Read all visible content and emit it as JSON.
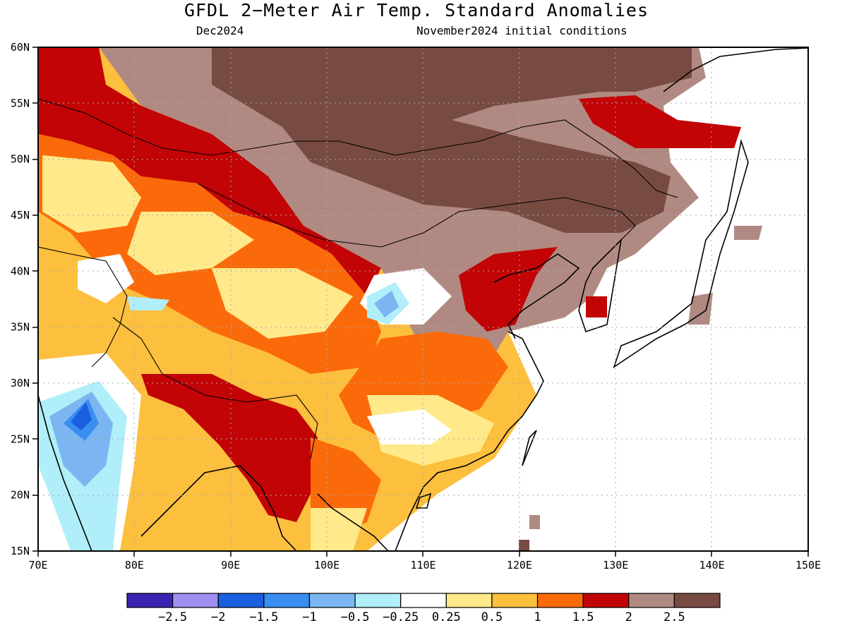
{
  "title": "GFDL 2−Meter Air Temp. Standard Anomalies",
  "subtitle_left": "Dec2024",
  "subtitle_right": "November2024 initial conditions",
  "lon_labels": [
    "70E",
    "80E",
    "90E",
    "100E",
    "110E",
    "120E",
    "130E",
    "140E",
    "150E"
  ],
  "lat_labels": [
    "60N",
    "55N",
    "50N",
    "45N",
    "40N",
    "35N",
    "30N",
    "25N",
    "20N",
    "15N"
  ],
  "colorbar": {
    "colors": [
      "#3b23b2",
      "#9f8ff0",
      "#1a5fe0",
      "#3a8ef0",
      "#7bb6f2",
      "#b0eef9",
      "#ffffff",
      "#ffe98a",
      "#fdbf3e",
      "#fb6a0a",
      "#c20406",
      "#b08a82",
      "#784b42"
    ],
    "labels": [
      "−2.5",
      "−2",
      "−1.5",
      "−1",
      "−0.5",
      "−0.25",
      "0.25",
      "0.5",
      "1",
      "1.5",
      "2",
      "2.5"
    ]
  }
}
